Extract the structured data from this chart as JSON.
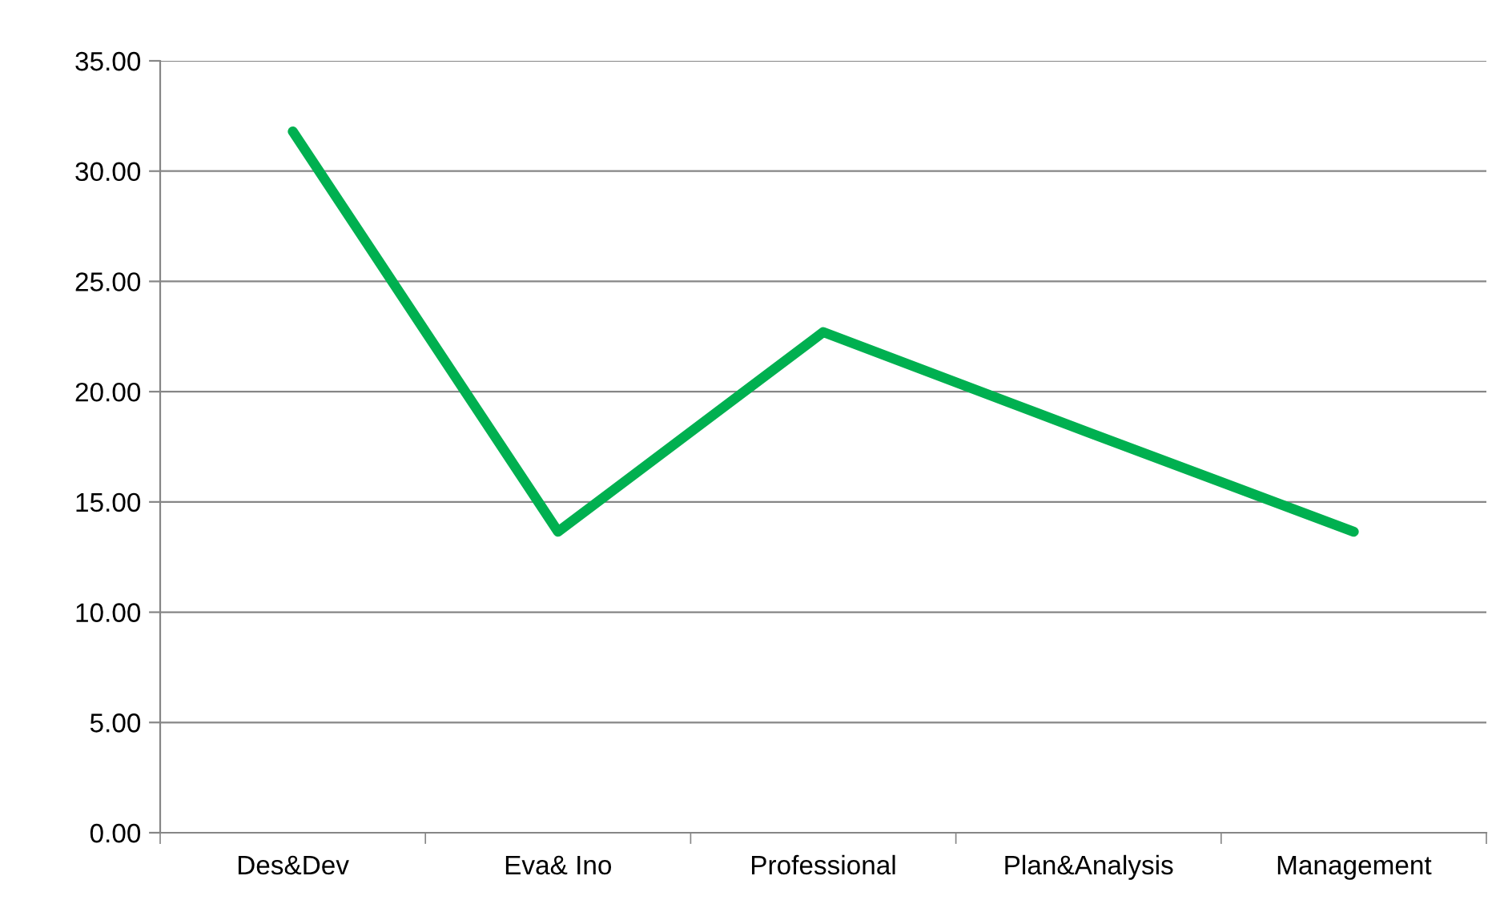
{
  "chart_data": {
    "type": "line",
    "categories": [
      "Des&Dev",
      "Eva& Ino",
      "Professional",
      "Plan&Analysis",
      "Management"
    ],
    "series": [
      {
        "color": "#00b050",
        "values": [
          31.8,
          13.65,
          22.7,
          18.15,
          13.65
        ]
      }
    ],
    "ylim": [
      0,
      35
    ],
    "yticks": [
      {
        "value": 0,
        "label": "0.00"
      },
      {
        "value": 5,
        "label": "5.00"
      },
      {
        "value": 10,
        "label": "10.00"
      },
      {
        "value": 15,
        "label": "15.00"
      },
      {
        "value": 20,
        "label": "20.00"
      },
      {
        "value": 25,
        "label": "25.00"
      },
      {
        "value": 30,
        "label": "30.00"
      },
      {
        "value": 35,
        "label": "35.00"
      }
    ],
    "grid": "y",
    "legend": false,
    "marker": "none",
    "line_style": "solid"
  }
}
